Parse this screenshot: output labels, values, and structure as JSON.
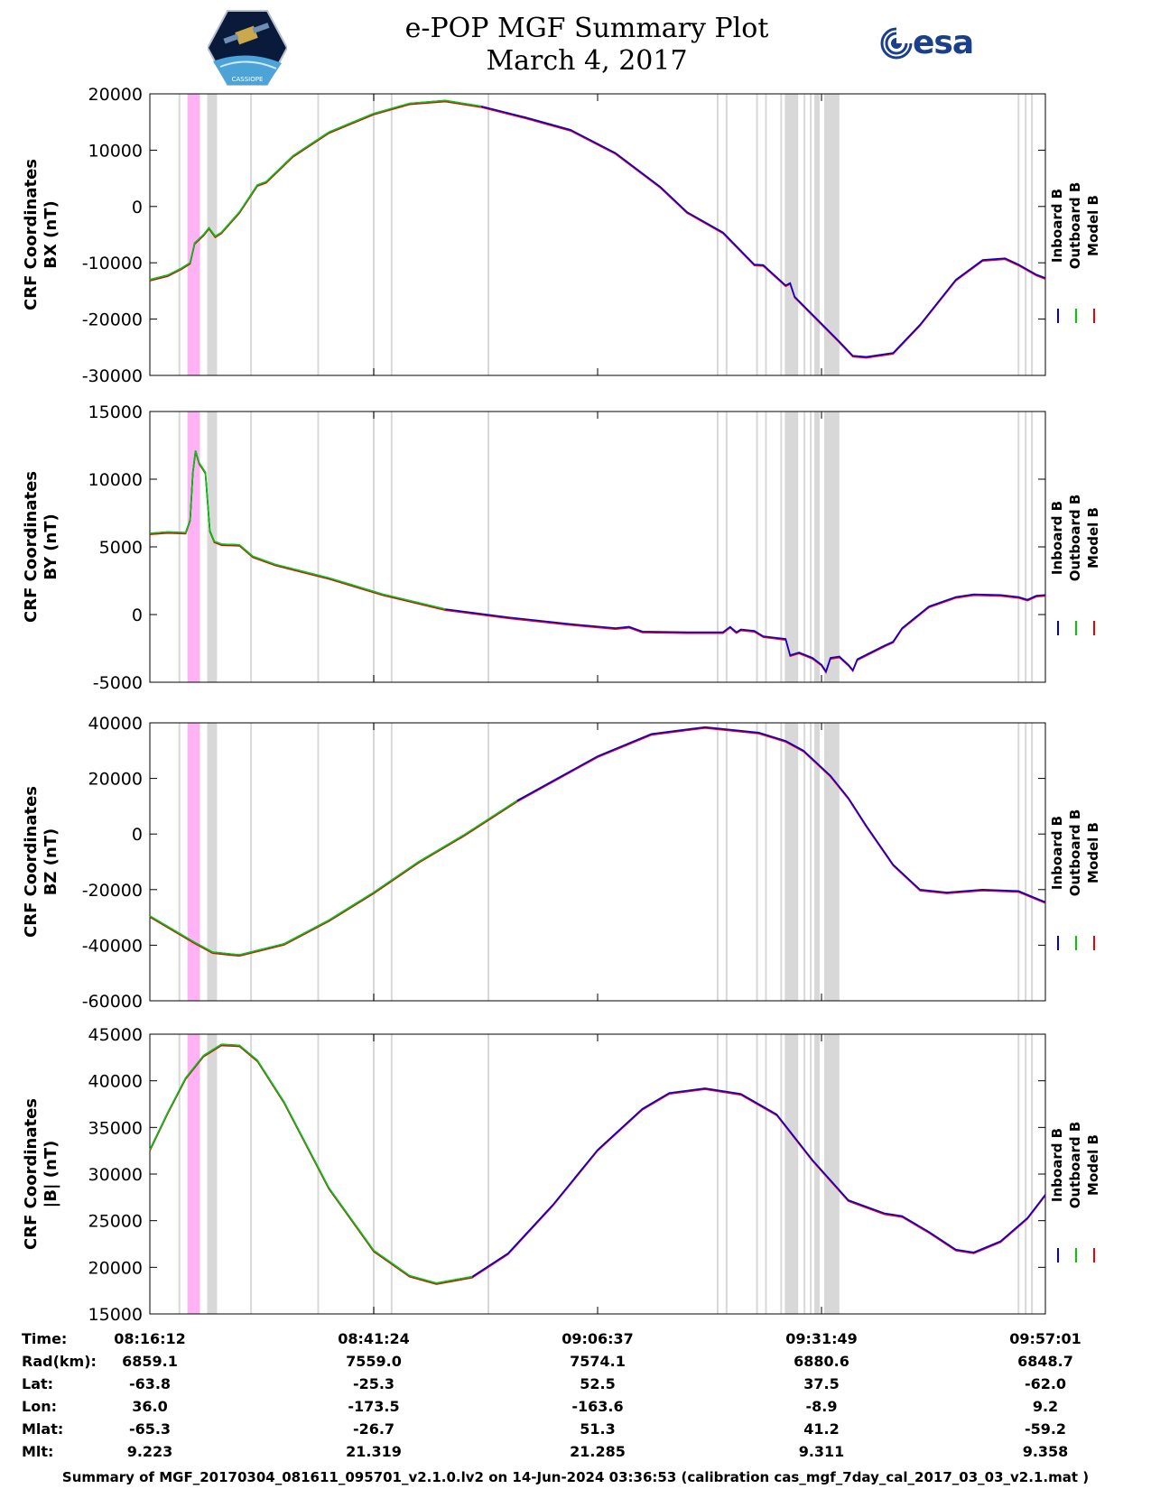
{
  "title": {
    "line1": "e-POP MGF Summary Plot",
    "line2": "March 4, 2017"
  },
  "logos": {
    "left_name": "cassiope-logo",
    "left_caption": "CASSIOPE",
    "right_text": "esa"
  },
  "colors": {
    "inboard": "#0000dd",
    "outboard": "#00cc00",
    "model": "#ee0000",
    "gray_band": "#d8d8d8",
    "pink_band": "#ffb3f5"
  },
  "legend": [
    "Inboard B",
    "Outboard B",
    "Model B"
  ],
  "x_ticks": [
    "08:16:12",
    "08:41:24",
    "09:06:37",
    "09:31:49",
    "09:57:01"
  ],
  "chart_data": [
    {
      "type": "line",
      "id": "bx",
      "ylabel_line1": "CRF Coordinates",
      "ylabel_line2": "BX (nT)",
      "ylim": [
        -30000,
        20000
      ],
      "yticks": [
        20000,
        10000,
        0,
        -10000,
        -20000,
        -30000
      ],
      "switch_t": 0.37,
      "points": [
        [
          0,
          -13000
        ],
        [
          0.02,
          -12200
        ],
        [
          0.035,
          -11000
        ],
        [
          0.045,
          -10000
        ],
        [
          0.05,
          -6500
        ],
        [
          0.06,
          -5000
        ],
        [
          0.066,
          -3800
        ],
        [
          0.073,
          -5300
        ],
        [
          0.08,
          -4600
        ],
        [
          0.1,
          -1000
        ],
        [
          0.12,
          3800
        ],
        [
          0.13,
          4400
        ],
        [
          0.16,
          9000
        ],
        [
          0.2,
          13200
        ],
        [
          0.25,
          16500
        ],
        [
          0.29,
          18300
        ],
        [
          0.33,
          18800
        ],
        [
          0.37,
          17800
        ],
        [
          0.42,
          15800
        ],
        [
          0.47,
          13600
        ],
        [
          0.52,
          9500
        ],
        [
          0.57,
          3500
        ],
        [
          0.6,
          -1000
        ],
        [
          0.64,
          -4600
        ],
        [
          0.675,
          -10300
        ],
        [
          0.685,
          -10400
        ],
        [
          0.71,
          -14000
        ],
        [
          0.715,
          -13600
        ],
        [
          0.72,
          -16000
        ],
        [
          0.77,
          -24000
        ],
        [
          0.785,
          -26500
        ],
        [
          0.8,
          -26700
        ],
        [
          0.83,
          -26000
        ],
        [
          0.86,
          -21000
        ],
        [
          0.9,
          -13000
        ],
        [
          0.93,
          -9500
        ],
        [
          0.955,
          -9200
        ],
        [
          0.97,
          -10300
        ],
        [
          0.99,
          -12100
        ],
        [
          1,
          -12700
        ]
      ]
    },
    {
      "type": "line",
      "id": "by",
      "ylabel_line1": "CRF Coordinates",
      "ylabel_line2": "BY (nT)",
      "ylim": [
        -5000,
        15000
      ],
      "yticks": [
        15000,
        10000,
        5000,
        0,
        -5000
      ],
      "switch_t": 0.33,
      "points": [
        [
          0,
          6000
        ],
        [
          0.02,
          6100
        ],
        [
          0.04,
          6050
        ],
        [
          0.045,
          7000
        ],
        [
          0.048,
          10500
        ],
        [
          0.051,
          12100
        ],
        [
          0.055,
          11200
        ],
        [
          0.062,
          10500
        ],
        [
          0.067,
          6200
        ],
        [
          0.072,
          5400
        ],
        [
          0.08,
          5200
        ],
        [
          0.1,
          5150
        ],
        [
          0.115,
          4300
        ],
        [
          0.14,
          3700
        ],
        [
          0.2,
          2700
        ],
        [
          0.26,
          1500
        ],
        [
          0.33,
          400
        ],
        [
          0.4,
          -200
        ],
        [
          0.47,
          -700
        ],
        [
          0.52,
          -1000
        ],
        [
          0.535,
          -900
        ],
        [
          0.55,
          -1250
        ],
        [
          0.6,
          -1300
        ],
        [
          0.64,
          -1300
        ],
        [
          0.648,
          -900
        ],
        [
          0.655,
          -1300
        ],
        [
          0.66,
          -1100
        ],
        [
          0.675,
          -1200
        ],
        [
          0.685,
          -1600
        ],
        [
          0.71,
          -1800
        ],
        [
          0.715,
          -3000
        ],
        [
          0.725,
          -2800
        ],
        [
          0.74,
          -3200
        ],
        [
          0.75,
          -3700
        ],
        [
          0.755,
          -4200
        ],
        [
          0.76,
          -3200
        ],
        [
          0.77,
          -3100
        ],
        [
          0.78,
          -3700
        ],
        [
          0.785,
          -4100
        ],
        [
          0.79,
          -3300
        ],
        [
          0.82,
          -2300
        ],
        [
          0.83,
          -2000
        ],
        [
          0.84,
          -1000
        ],
        [
          0.87,
          600
        ],
        [
          0.9,
          1300
        ],
        [
          0.92,
          1500
        ],
        [
          0.95,
          1450
        ],
        [
          0.97,
          1300
        ],
        [
          0.98,
          1100
        ],
        [
          0.99,
          1400
        ],
        [
          1,
          1450
        ]
      ]
    },
    {
      "type": "line",
      "id": "bz",
      "ylabel_line1": "CRF Coordinates",
      "ylabel_line2": "BZ (nT)",
      "ylim": [
        -60000,
        40000
      ],
      "yticks": [
        40000,
        20000,
        0,
        -20000,
        -40000,
        -60000
      ],
      "switch_t": 0.41,
      "points": [
        [
          0,
          -29500
        ],
        [
          0.05,
          -39000
        ],
        [
          0.07,
          -42500
        ],
        [
          0.1,
          -43500
        ],
        [
          0.15,
          -39500
        ],
        [
          0.2,
          -31000
        ],
        [
          0.25,
          -21000
        ],
        [
          0.3,
          -10000
        ],
        [
          0.35,
          -500
        ],
        [
          0.41,
          12000
        ],
        [
          0.5,
          28000
        ],
        [
          0.56,
          36000
        ],
        [
          0.62,
          38500
        ],
        [
          0.68,
          36500
        ],
        [
          0.71,
          33500
        ],
        [
          0.73,
          30000
        ],
        [
          0.76,
          21000
        ],
        [
          0.78,
          13000
        ],
        [
          0.8,
          3000
        ],
        [
          0.83,
          -11000
        ],
        [
          0.86,
          -20000
        ],
        [
          0.89,
          -21000
        ],
        [
          0.93,
          -20000
        ],
        [
          0.97,
          -20500
        ],
        [
          1,
          -24500
        ]
      ]
    },
    {
      "type": "line",
      "id": "bmag",
      "ylabel_line1": "CRF Coordinates",
      "ylabel_line2": "|B| (nT)",
      "ylim": [
        15000,
        45000
      ],
      "yticks": [
        45000,
        40000,
        35000,
        30000,
        25000,
        20000,
        15000
      ],
      "switch_t": 0.36,
      "points": [
        [
          0,
          32600
        ],
        [
          0.02,
          36600
        ],
        [
          0.04,
          40300
        ],
        [
          0.06,
          42700
        ],
        [
          0.08,
          43900
        ],
        [
          0.1,
          43800
        ],
        [
          0.12,
          42200
        ],
        [
          0.15,
          37700
        ],
        [
          0.2,
          28500
        ],
        [
          0.25,
          21800
        ],
        [
          0.29,
          19100
        ],
        [
          0.32,
          18300
        ],
        [
          0.36,
          19000
        ],
        [
          0.4,
          21500
        ],
        [
          0.45,
          26700
        ],
        [
          0.5,
          32600
        ],
        [
          0.55,
          37000
        ],
        [
          0.58,
          38700
        ],
        [
          0.62,
          39200
        ],
        [
          0.66,
          38600
        ],
        [
          0.7,
          36400
        ],
        [
          0.74,
          31500
        ],
        [
          0.78,
          27200
        ],
        [
          0.82,
          25800
        ],
        [
          0.84,
          25500
        ],
        [
          0.87,
          23800
        ],
        [
          0.9,
          21900
        ],
        [
          0.92,
          21600
        ],
        [
          0.95,
          22800
        ],
        [
          0.98,
          25300
        ],
        [
          1,
          27800
        ]
      ]
    }
  ],
  "bands": {
    "pink": [
      0.042,
      0.056
    ],
    "gray_thin": [
      0.033,
      0.113,
      0.188,
      0.25,
      0.27,
      0.378,
      0.634,
      0.644,
      0.678,
      0.688,
      0.705,
      0.731,
      0.738,
      0.76,
      0.97,
      0.978,
      0.985
    ],
    "gray_wide": [
      [
        0.064,
        0.075
      ],
      [
        0.709,
        0.724
      ],
      [
        0.742,
        0.748
      ],
      [
        0.753,
        0.77
      ]
    ]
  },
  "bottom_table": {
    "row_labels": [
      "Time:",
      "Rad(km):",
      "Lat:",
      "Lon:",
      "Mlat:",
      "Mlt:"
    ],
    "columns": [
      [
        "08:16:12",
        "6859.1",
        "-63.8",
        "36.0",
        "-65.3",
        "9.223"
      ],
      [
        "08:41:24",
        "7559.0",
        "-25.3",
        "-173.5",
        "-26.7",
        "21.319"
      ],
      [
        "09:06:37",
        "7574.1",
        "52.5",
        "-163.6",
        "51.3",
        "21.285"
      ],
      [
        "09:31:49",
        "6880.6",
        "37.5",
        "-8.9",
        "41.2",
        "9.311"
      ],
      [
        "09:57:01",
        "6848.7",
        "-62.0",
        "9.2",
        "-59.2",
        "9.358"
      ]
    ]
  },
  "footer": "Summary of MGF_20170304_081611_095701_v2.1.0.lv2 on 14-Jun-2024 03:36:53 (calibration cas_mgf_7day_cal_2017_03_03_v2.1.mat )"
}
